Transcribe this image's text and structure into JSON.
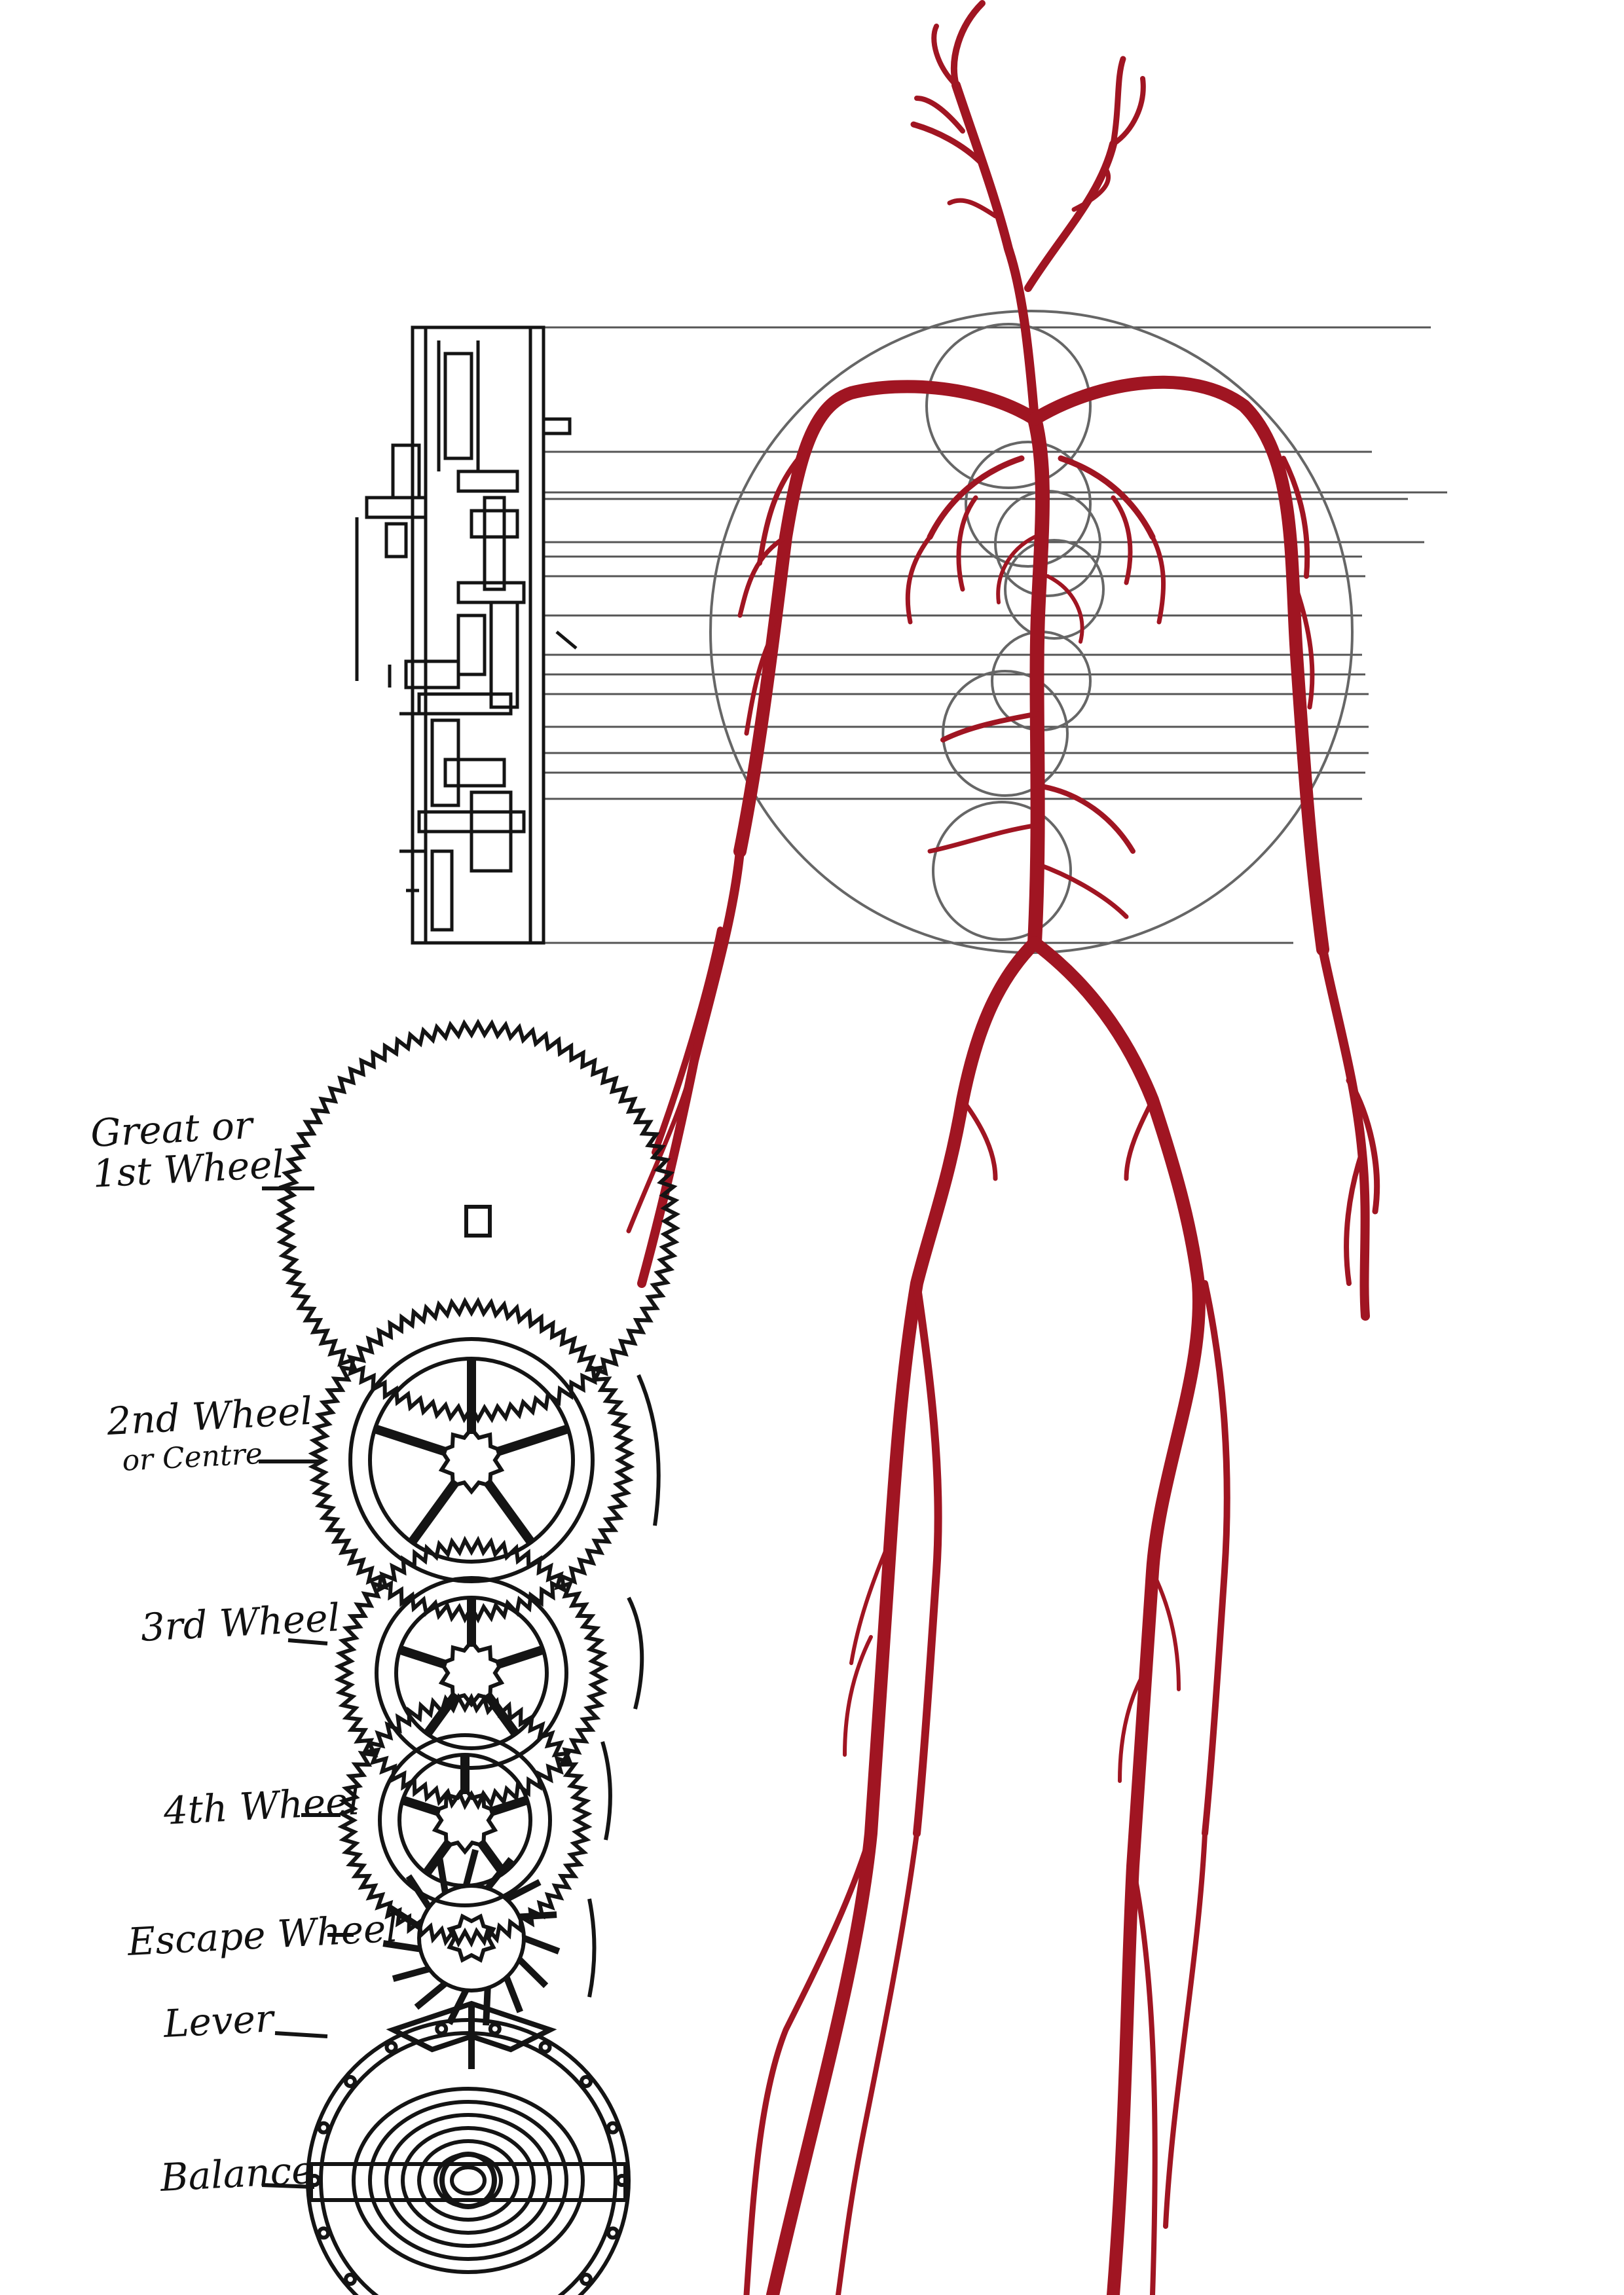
{
  "colors": {
    "artery": "#a01522",
    "ink": "#141414",
    "guide": "#555555",
    "paper": "#ffffff"
  },
  "labels": {
    "great_wheel": [
      "Great or",
      "1st Wheel"
    ],
    "second_wheel": [
      "2nd Wheel",
      "or Centre"
    ],
    "third_wheel": "3rd Wheel",
    "fourth_wheel": "4th Wheel",
    "escape_wheel": "Escape Wheel",
    "lever": "Lever",
    "balance": "Balance"
  }
}
